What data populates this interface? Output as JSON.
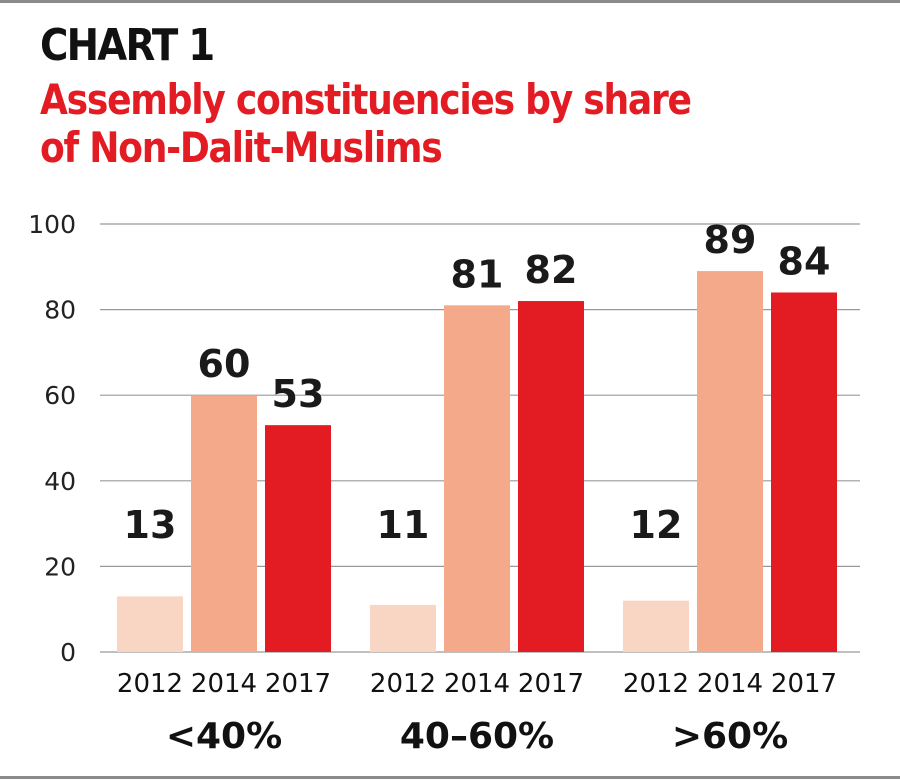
{
  "header": {
    "kicker": "CHART 1",
    "title_line1": "Assembly constituencies by share",
    "title_line2": "of Non-Dalit-Muslims"
  },
  "chart_data": {
    "type": "bar",
    "title": "Assembly constituencies by share of Non-Dalit-Muslims",
    "groups": [
      "<40%",
      "40–60%",
      ">60%"
    ],
    "categories": [
      "2012",
      "2014",
      "2017"
    ],
    "series": [
      {
        "group": "<40%",
        "values": [
          13,
          60,
          53
        ]
      },
      {
        "group": "40–60%",
        "values": [
          11,
          81,
          82
        ]
      },
      {
        "group": ">60%",
        "values": [
          12,
          89,
          84
        ]
      }
    ],
    "ylim": [
      0,
      100
    ],
    "yticks": [
      0,
      20,
      40,
      60,
      80,
      100
    ],
    "grid": true,
    "colors": {
      "2012": "#f9d5c3",
      "2014": "#f4a98a",
      "2017": "#e31b23"
    }
  }
}
